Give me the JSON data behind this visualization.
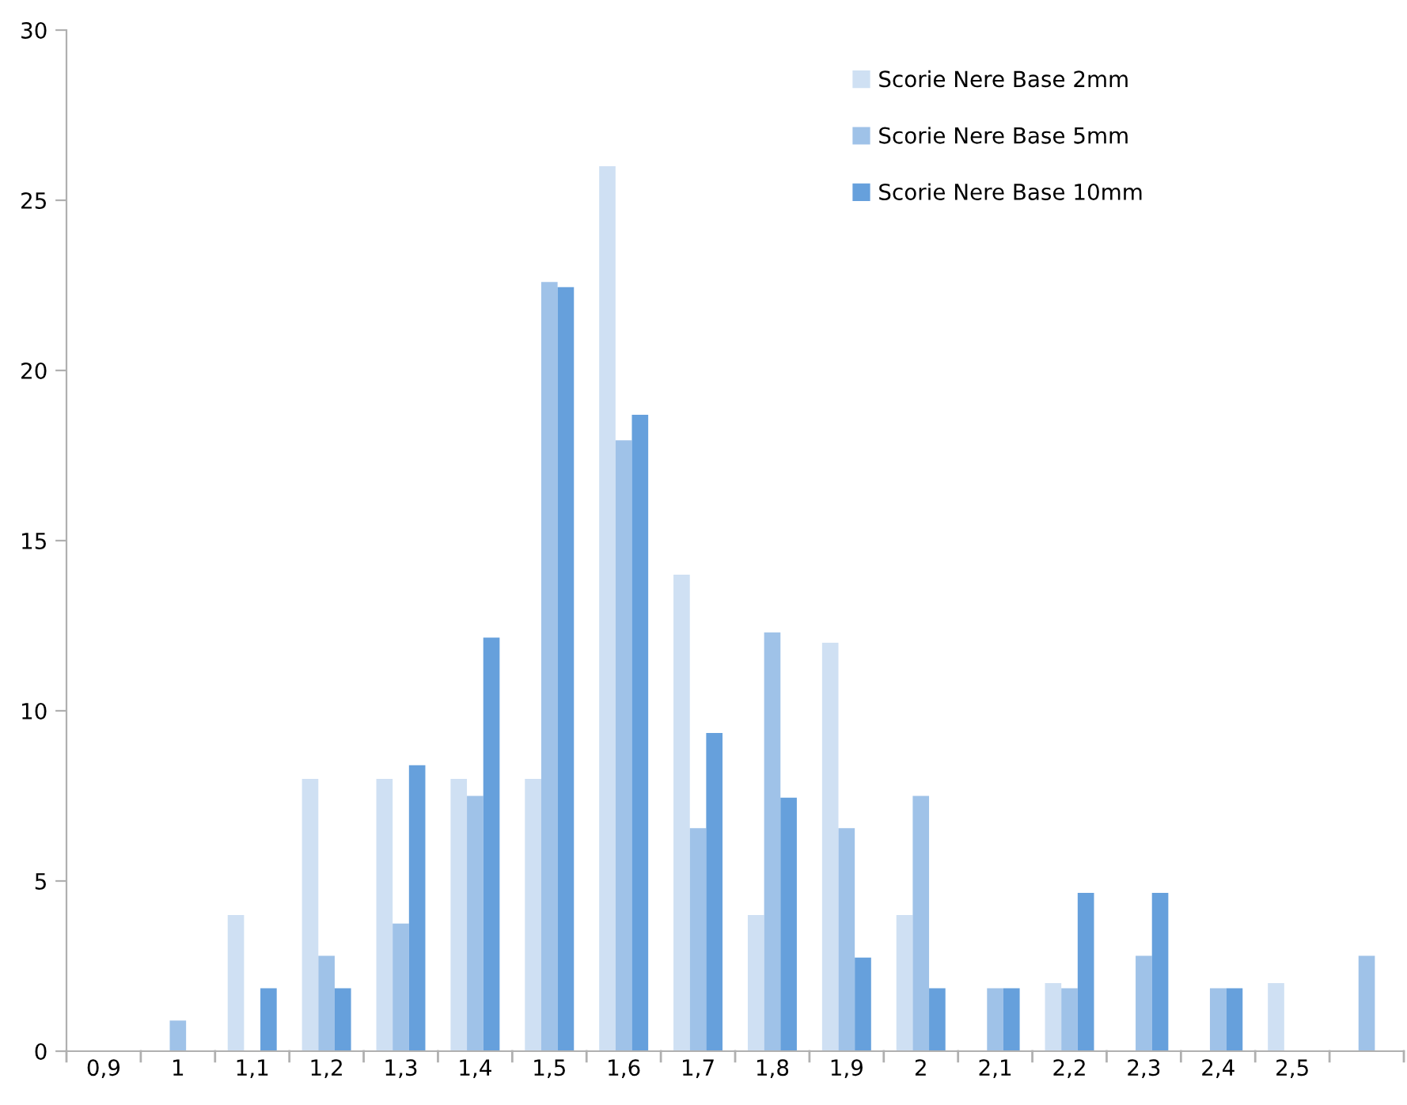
{
  "chart_data": {
    "type": "bar",
    "categories": [
      "0,9",
      "1",
      "1,1",
      "1,2",
      "1,3",
      "1,4",
      "1,5",
      "1,6",
      "1,7",
      "1,8",
      "1,9",
      "2",
      "2,1",
      "2,2",
      "2,3",
      "2,4",
      "2,5",
      null
    ],
    "series": [
      {
        "name": "Scorie Nere Base 2mm",
        "color": "#cfe0f3",
        "values": [
          null,
          null,
          4,
          8,
          8,
          8,
          8,
          26,
          14,
          4,
          12,
          4,
          null,
          2,
          null,
          null,
          2,
          null
        ]
      },
      {
        "name": "Scorie Nere Base 5mm",
        "color": "#9fc2e8",
        "values": [
          null,
          0.9,
          null,
          2.8,
          3.75,
          7.5,
          22.6,
          17.95,
          6.55,
          12.3,
          6.55,
          7.5,
          1.85,
          1.85,
          2.8,
          1.85,
          null,
          2.8
        ]
      },
      {
        "name": "Scorie Nere Base 10mm",
        "color": "#66a0dc",
        "values": [
          null,
          null,
          1.85,
          1.85,
          8.4,
          12.15,
          22.45,
          18.7,
          9.35,
          7.45,
          2.75,
          1.85,
          1.85,
          4.65,
          4.65,
          1.85,
          null,
          null
        ]
      }
    ],
    "ylim": [
      0,
      30
    ],
    "yticks": [
      0,
      5,
      10,
      15,
      20,
      25,
      30
    ],
    "grid": false,
    "legend": "top right"
  }
}
